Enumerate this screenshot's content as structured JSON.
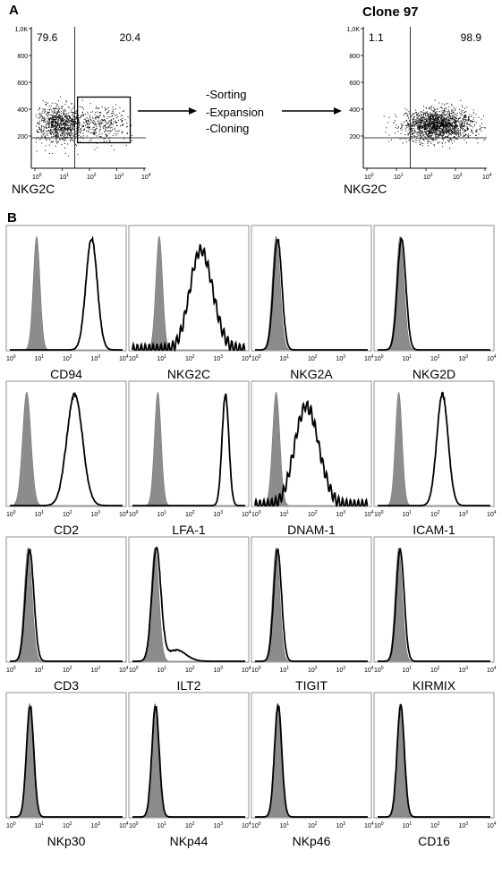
{
  "panel_labels": {
    "a": "A",
    "b": "B"
  },
  "panel_a": {
    "process_steps": [
      "-Sorting",
      "-Expansion",
      "-Cloning"
    ],
    "clone_title": "Clone 97",
    "chart_data": [
      {
        "type": "scatter",
        "xlabel": "NKG2C",
        "ylabel": "",
        "y_ticks": [
          "1,0K",
          "800",
          "600",
          "400",
          "200"
        ],
        "x_ticks": [
          "0",
          "1",
          "2",
          "3",
          "4"
        ],
        "quadrant_left": "79.6",
        "quadrant_right": "20.4",
        "has_gate_box": true,
        "clusters": [
          {
            "x": 0.9,
            "y": 290,
            "sx": 0.45,
            "sy": 70,
            "n": 900
          },
          {
            "x": 2.5,
            "y": 290,
            "sx": 0.5,
            "sy": 65,
            "n": 300
          }
        ]
      },
      {
        "type": "scatter",
        "xlabel": "NKG2C",
        "ylabel": "",
        "y_ticks": [
          "1,0K",
          "800",
          "600",
          "400",
          "200"
        ],
        "x_ticks": [
          "0",
          "1",
          "2",
          "3",
          "4"
        ],
        "quadrant_left": "1.1",
        "quadrant_right": "98.9",
        "has_gate_box": false,
        "clusters": [
          {
            "x": 2.4,
            "y": 285,
            "sx": 0.6,
            "sy": 55,
            "n": 1700
          }
        ]
      }
    ]
  },
  "panel_b": {
    "chart_data": [
      {
        "type": "area",
        "xlabel": "CD94",
        "xlim": [
          0,
          4
        ],
        "ticks": [
          "0",
          "1",
          "2",
          "3",
          "4"
        ],
        "iso": {
          "mu": 0.95,
          "sd": 0.12
        },
        "stain": {
          "mu": 2.9,
          "sd": 0.2,
          "shape": "normal"
        }
      },
      {
        "type": "area",
        "xlabel": "NKG2C",
        "xlim": [
          0,
          4
        ],
        "ticks": [
          "0",
          "1",
          "2",
          "3",
          "4"
        ],
        "iso": {
          "mu": 0.95,
          "sd": 0.12
        },
        "stain": {
          "mu": 2.6,
          "sd": 0.38,
          "shape": "broad"
        }
      },
      {
        "type": "area",
        "xlabel": "NKG2A",
        "xlim": [
          0,
          4
        ],
        "ticks": [
          "0",
          "1",
          "2",
          "3",
          "4"
        ],
        "iso": {
          "mu": 0.75,
          "sd": 0.14
        },
        "stain": {
          "mu": 0.8,
          "sd": 0.15,
          "shape": "normal"
        }
      },
      {
        "type": "area",
        "xlabel": "NKG2D",
        "xlim": [
          0,
          4
        ],
        "ticks": [
          "0",
          "1",
          "2",
          "3",
          "4"
        ],
        "iso": {
          "mu": 0.8,
          "sd": 0.14
        },
        "stain": {
          "mu": 0.85,
          "sd": 0.15,
          "shape": "normal"
        }
      },
      {
        "type": "area",
        "xlabel": "CD2",
        "xlim": [
          0,
          4
        ],
        "ticks": [
          "0",
          "1",
          "2",
          "3",
          "4"
        ],
        "iso": {
          "mu": 0.6,
          "sd": 0.15
        },
        "stain": {
          "mu": 2.3,
          "sd": 0.28,
          "shape": "normal"
        }
      },
      {
        "type": "area",
        "xlabel": "LFA-1",
        "xlim": [
          0,
          4
        ],
        "ticks": [
          "0",
          "1",
          "2",
          "3",
          "4"
        ],
        "iso": {
          "mu": 0.9,
          "sd": 0.12
        },
        "stain": {
          "mu": 3.3,
          "sd": 0.12,
          "shape": "normal"
        }
      },
      {
        "type": "area",
        "xlabel": "DNAM-1",
        "xlim": [
          0,
          4
        ],
        "ticks": [
          "0",
          "1",
          "2",
          "3",
          "4"
        ],
        "iso": {
          "mu": 0.75,
          "sd": 0.13
        },
        "stain": {
          "mu": 2.0,
          "sd": 0.4,
          "shape": "broad"
        }
      },
      {
        "type": "area",
        "xlabel": "ICAM-1",
        "xlim": [
          0,
          4
        ],
        "ticks": [
          "0",
          "1",
          "2",
          "3",
          "4"
        ],
        "iso": {
          "mu": 0.75,
          "sd": 0.12
        },
        "stain": {
          "mu": 2.3,
          "sd": 0.2,
          "shape": "normal"
        }
      },
      {
        "type": "area",
        "xlabel": "CD3",
        "xlim": [
          0,
          4
        ],
        "ticks": [
          "0",
          "1",
          "2",
          "3",
          "4"
        ],
        "iso": {
          "mu": 0.65,
          "sd": 0.14
        },
        "stain": {
          "mu": 0.7,
          "sd": 0.15,
          "shape": "normal"
        }
      },
      {
        "type": "area",
        "xlabel": "ILT2",
        "xlim": [
          0,
          4
        ],
        "ticks": [
          "0",
          "1",
          "2",
          "3",
          "4"
        ],
        "iso": {
          "mu": 0.8,
          "sd": 0.14
        },
        "stain": {
          "mu": 0.85,
          "sd": 0.16,
          "shape": "tail"
        }
      },
      {
        "type": "area",
        "xlabel": "TIGIT",
        "xlim": [
          0,
          4
        ],
        "ticks": [
          "0",
          "1",
          "2",
          "3",
          "4"
        ],
        "iso": {
          "mu": 0.75,
          "sd": 0.13
        },
        "stain": {
          "mu": 0.8,
          "sd": 0.14,
          "shape": "normal"
        }
      },
      {
        "type": "area",
        "xlabel": "KIRMIX",
        "xlim": [
          0,
          4
        ],
        "ticks": [
          "0",
          "1",
          "2",
          "3",
          "4"
        ],
        "iso": {
          "mu": 0.75,
          "sd": 0.13
        },
        "stain": {
          "mu": 0.8,
          "sd": 0.14,
          "shape": "normal"
        }
      },
      {
        "type": "area",
        "xlabel": "NKp30",
        "xlim": [
          0,
          4
        ],
        "ticks": [
          "0",
          "1",
          "2",
          "3",
          "4"
        ],
        "iso": {
          "mu": 0.7,
          "sd": 0.12
        },
        "stain": {
          "mu": 0.72,
          "sd": 0.13,
          "shape": "normal"
        }
      },
      {
        "type": "area",
        "xlabel": "NKp44",
        "xlim": [
          0,
          4
        ],
        "ticks": [
          "0",
          "1",
          "2",
          "3",
          "4"
        ],
        "iso": {
          "mu": 0.8,
          "sd": 0.12
        },
        "stain": {
          "mu": 0.82,
          "sd": 0.13,
          "shape": "normal"
        }
      },
      {
        "type": "area",
        "xlabel": "NKp46",
        "xlim": [
          0,
          4
        ],
        "ticks": [
          "0",
          "1",
          "2",
          "3",
          "4"
        ],
        "iso": {
          "mu": 0.8,
          "sd": 0.12
        },
        "stain": {
          "mu": 0.82,
          "sd": 0.13,
          "shape": "normal"
        }
      },
      {
        "type": "area",
        "xlabel": "CD16",
        "xlim": [
          0,
          4
        ],
        "ticks": [
          "0",
          "1",
          "2",
          "3",
          "4"
        ],
        "iso": {
          "mu": 0.8,
          "sd": 0.12
        },
        "stain": {
          "mu": 0.82,
          "sd": 0.13,
          "shape": "normal"
        }
      }
    ]
  }
}
